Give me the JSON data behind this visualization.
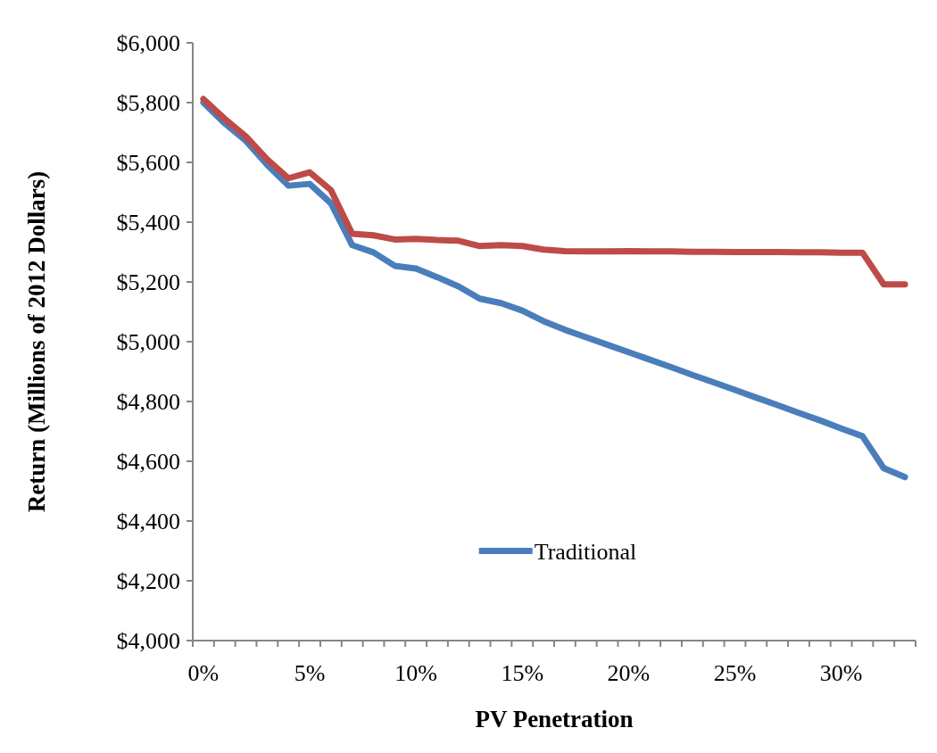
{
  "chart_data": {
    "type": "line",
    "xlabel": "PV Penetration",
    "ylabel": "Return (Millions of 2012 Dollars)",
    "categories": [
      "0%",
      null,
      null,
      null,
      null,
      "5%",
      null,
      null,
      null,
      null,
      "10%",
      null,
      null,
      null,
      null,
      "15%",
      null,
      null,
      null,
      null,
      "20%",
      null,
      null,
      null,
      null,
      "25%",
      null,
      null,
      null,
      null,
      "30%",
      null,
      null,
      null
    ],
    "series": [
      {
        "name": "Traditional",
        "color": "#4a7ebb",
        "values": [
          5800,
          5731,
          5672,
          5592,
          5522,
          5528,
          5463,
          5323,
          5299,
          5254,
          5245,
          5216,
          5185,
          5144,
          5129,
          5104,
          5069,
          5040,
          5015,
          4990,
          4965,
          4940,
          4915,
          4889,
          4864,
          4839,
          4813,
          4788,
          4762,
          4737,
          4710,
          4684,
          4577,
          4547
        ]
      },
      {
        "color": "#be4b48",
        "values": [
          5812,
          5746,
          5687,
          5610,
          5547,
          5567,
          5507,
          5361,
          5356,
          5342,
          5344,
          5340,
          5338,
          5320,
          5323,
          5320,
          5308,
          5303,
          5302,
          5302,
          5303,
          5302,
          5302,
          5301,
          5301,
          5300,
          5300,
          5300,
          5299,
          5299,
          5298,
          5298,
          5192,
          5192
        ]
      }
    ],
    "ylim": [
      4000,
      6000
    ],
    "yticks": [
      {
        "value": 4000,
        "label": "$4,000"
      },
      {
        "value": 4200,
        "label": "$4,200"
      },
      {
        "value": 4400,
        "label": "$4,400"
      },
      {
        "value": 4600,
        "label": "$4,600"
      },
      {
        "value": 4800,
        "label": "$4,800"
      },
      {
        "value": 5000,
        "label": "$5,000"
      },
      {
        "value": 5200,
        "label": "$5,200"
      },
      {
        "value": 5400,
        "label": "$5,400"
      },
      {
        "value": 5600,
        "label": "$5,600"
      },
      {
        "value": 5800,
        "label": "$5,800"
      },
      {
        "value": 6000,
        "label": "$6,000"
      }
    ],
    "grid": false,
    "legend": "bottom",
    "marker": "none",
    "line_style": "solid"
  }
}
